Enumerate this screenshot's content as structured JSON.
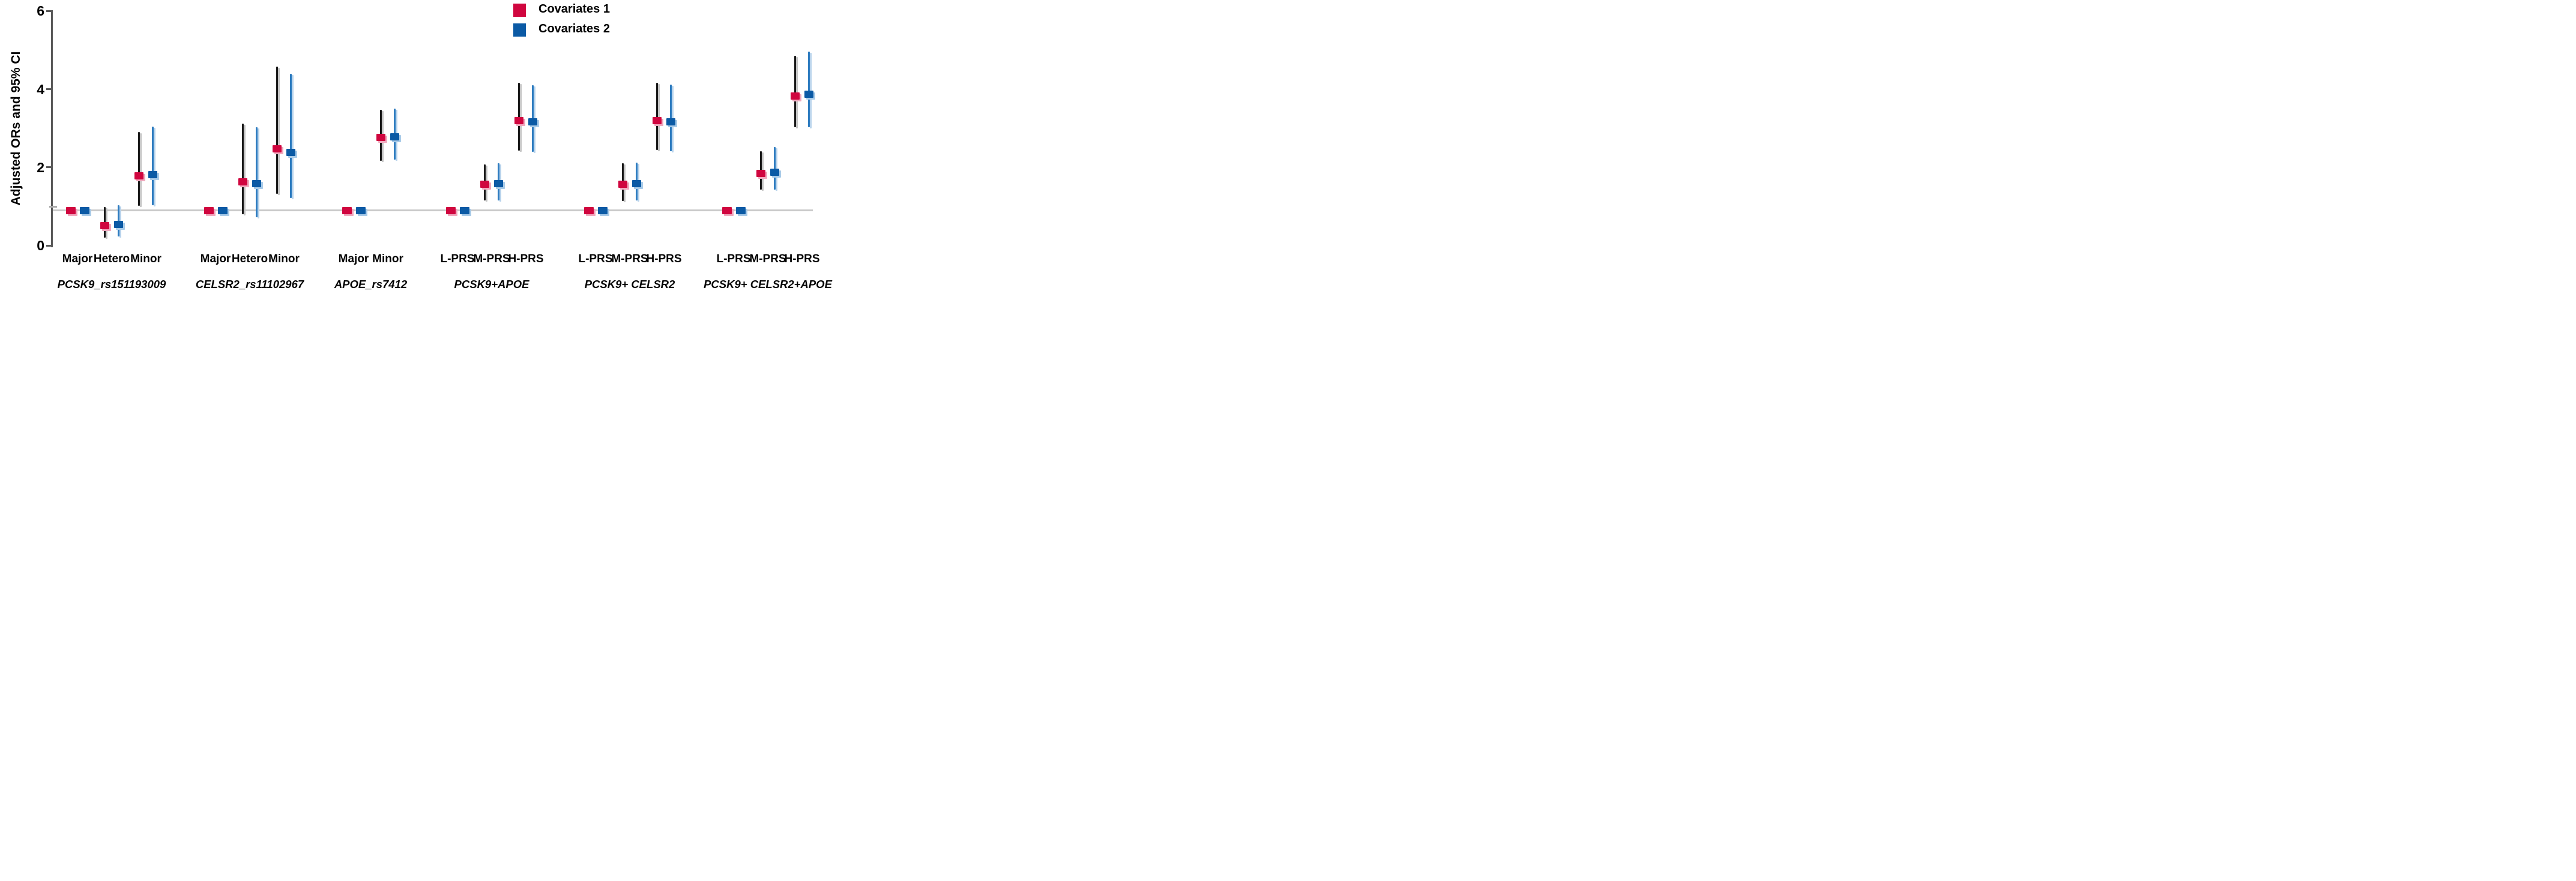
{
  "figure": {
    "background": "#ffffff"
  },
  "y_axis": {
    "title": "Adjusted ORs and 95% CI",
    "tick_labels": [
      "0",
      "2",
      "4",
      "6"
    ],
    "ticks": [
      0,
      2,
      4,
      6
    ],
    "minor_tick": 1,
    "range": [
      0,
      6.2
    ]
  },
  "reference_line": {
    "value": 0.91,
    "color": "#C9C9C9"
  },
  "legend": {
    "position": "top-center-right",
    "items": [
      {
        "label": "Covariates 1",
        "color": "#D0063F"
      },
      {
        "label": "Covariates 2",
        "color": "#0B5AA5"
      }
    ]
  },
  "colors": {
    "covariates1_marker": "#D0063F",
    "covariates1_ci_line": "#1A1A1A",
    "covariates2_marker": "#0B5AA5",
    "covariates2_ci_line": "#2E7CC0",
    "axis": "#595959",
    "reference_line": "#C9C9C9"
  },
  "chart_data": {
    "type": "scatter",
    "subtype": "point-range-forest",
    "title": "",
    "xlabel": "",
    "ylabel": "Adjusted ORs and 95% CI",
    "ylim": [
      0,
      6.2
    ],
    "grid": false,
    "legend_position": "top",
    "series_names": [
      "Covariates 1",
      "Covariates 2"
    ],
    "groups": [
      {
        "label": "PCSK9_rs151193009",
        "categories": [
          {
            "label": "Major",
            "reference": true,
            "cov1": {
              "or": 0.9
            },
            "cov2": {
              "or": 0.9
            }
          },
          {
            "label": "Hetero",
            "cov1": {
              "or": 0.51,
              "ci": [
                0.21,
                0.98
              ]
            },
            "cov2": {
              "or": 0.54,
              "ci": [
                0.23,
                1.03
              ]
            }
          },
          {
            "label": "Minor",
            "cov1": {
              "or": 1.78,
              "ci": [
                1.01,
                2.9
              ]
            },
            "cov2": {
              "or": 1.82,
              "ci": [
                1.03,
                3.05
              ]
            }
          }
        ]
      },
      {
        "label": "CELSR2_rs11102967",
        "categories": [
          {
            "label": "Major",
            "reference": true,
            "cov1": {
              "or": 0.9
            },
            "cov2": {
              "or": 0.9
            }
          },
          {
            "label": "Hetero",
            "cov1": {
              "or": 1.63,
              "ci": [
                0.8,
                3.12
              ]
            },
            "cov2": {
              "or": 1.58,
              "ci": [
                0.73,
                3.02
              ]
            }
          },
          {
            "label": "Minor",
            "cov1": {
              "or": 2.47,
              "ci": [
                1.32,
                4.58
              ]
            },
            "cov2": {
              "or": 2.38,
              "ci": [
                1.22,
                4.4
              ]
            }
          }
        ]
      },
      {
        "label": "APOE_rs7412",
        "categories": [
          {
            "label": "Major",
            "reference": true,
            "cov1": {
              "or": 0.9
            },
            "cov2": {
              "or": 0.9
            }
          },
          {
            "label": "Minor",
            "cov1": {
              "or": 2.77,
              "ci": [
                2.17,
                3.47
              ]
            },
            "cov2": {
              "or": 2.78,
              "ci": [
                2.2,
                3.5
              ]
            }
          }
        ]
      },
      {
        "label": "PCSK9+APOE",
        "categories": [
          {
            "label": "L-PRS",
            "reference": true,
            "cov1": {
              "or": 0.9
            },
            "cov2": {
              "or": 0.9
            }
          },
          {
            "label": "M-PRS",
            "cov1": {
              "or": 1.57,
              "ci": [
                1.15,
                2.08
              ]
            },
            "cov2": {
              "or": 1.58,
              "ci": [
                1.15,
                2.1
              ]
            }
          },
          {
            "label": "H-PRS",
            "cov1": {
              "or": 3.2,
              "ci": [
                2.43,
                4.16
              ]
            },
            "cov2": {
              "or": 3.17,
              "ci": [
                2.4,
                4.1
              ]
            }
          }
        ]
      },
      {
        "label": "PCSK9+ CELSR2",
        "categories": [
          {
            "label": "L-PRS",
            "reference": true,
            "cov1": {
              "or": 0.9
            },
            "cov2": {
              "or": 0.9
            }
          },
          {
            "label": "M-PRS",
            "cov1": {
              "or": 1.57,
              "ci": [
                1.14,
                2.11
              ]
            },
            "cov2": {
              "or": 1.58,
              "ci": [
                1.15,
                2.12
              ]
            }
          },
          {
            "label": "H-PRS",
            "cov1": {
              "or": 3.2,
              "ci": [
                2.45,
                4.17
              ]
            },
            "cov2": {
              "or": 3.17,
              "ci": [
                2.42,
                4.12
              ]
            }
          }
        ]
      },
      {
        "label": "PCSK9+ CELSR2+APOE",
        "categories": [
          {
            "label": "L-PRS",
            "reference": true,
            "cov1": {
              "or": 0.9
            },
            "cov2": {
              "or": 0.9
            }
          },
          {
            "label": "M-PRS",
            "cov1": {
              "or": 1.85,
              "ci": [
                1.43,
                2.42
              ]
            },
            "cov2": {
              "or": 1.87,
              "ci": [
                1.43,
                2.52
              ]
            }
          },
          {
            "label": "H-PRS",
            "cov1": {
              "or": 3.83,
              "ci": [
                3.02,
                4.86
              ]
            },
            "cov2": {
              "or": 3.87,
              "ci": [
                3.02,
                4.96
              ]
            }
          }
        ]
      }
    ]
  }
}
